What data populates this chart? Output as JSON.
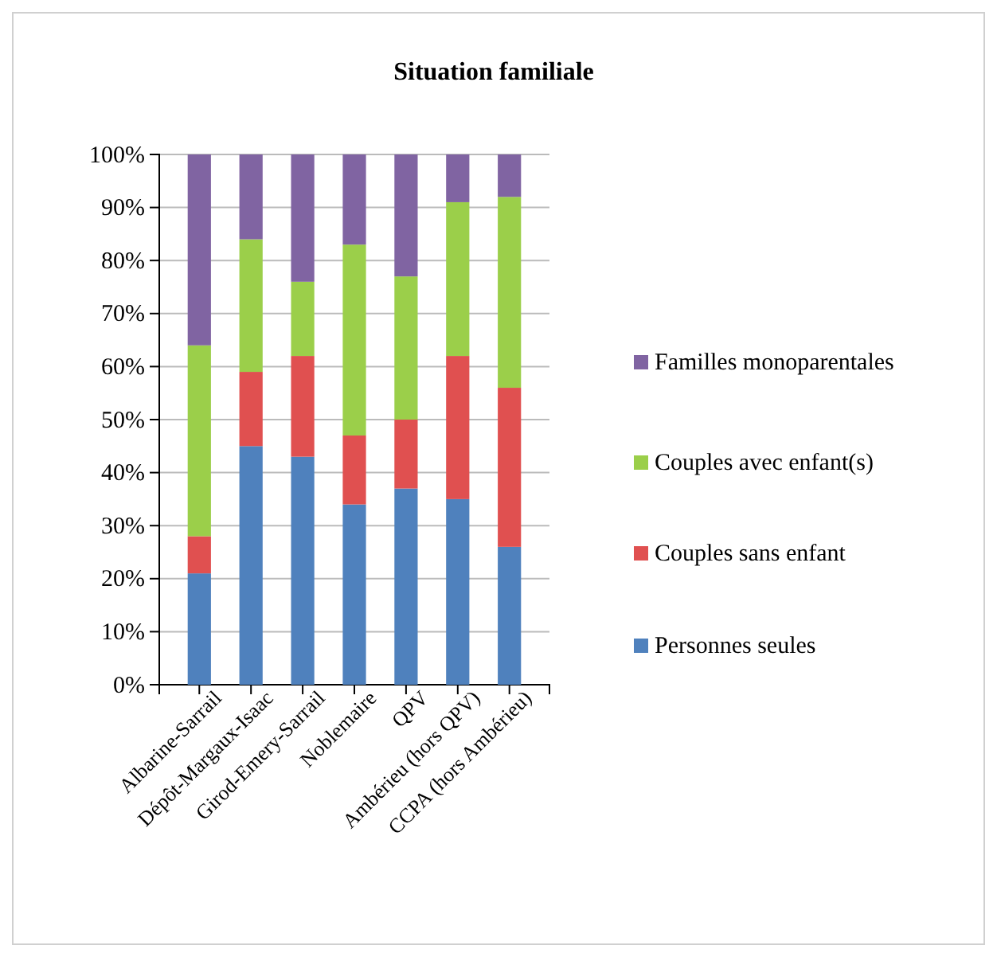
{
  "chart_data": {
    "type": "bar",
    "title": "Situation familiale",
    "stacked": true,
    "categories": [
      "Albarine-Sarrail",
      "Dépôt-Margaux-Isaac",
      "Girod-Emery-Sarrail",
      "Noblemaire",
      "QPV",
      "Ambérieu (hors QPV)",
      "CCPA (hors Ambérieu)"
    ],
    "series": [
      {
        "name": "Personnes seules",
        "color": "#4f81bd",
        "values": [
          21,
          45,
          43,
          34,
          37,
          35,
          26
        ]
      },
      {
        "name": "Couples sans enfant",
        "color": "#e05050",
        "values": [
          7,
          14,
          19,
          13,
          13,
          27,
          30
        ]
      },
      {
        "name": "Couples avec enfant(s)",
        "color": "#9bcf4a",
        "values": [
          36,
          25,
          14,
          36,
          27,
          29,
          36
        ]
      },
      {
        "name": "Familles monoparentales",
        "color": "#8064a2",
        "values": [
          36,
          16,
          24,
          17,
          23,
          9,
          8
        ]
      }
    ],
    "ylim": [
      0,
      100
    ],
    "yticks": [
      {
        "value": 0,
        "label": "0%"
      },
      {
        "value": 10,
        "label": "10%"
      },
      {
        "value": 20,
        "label": "20%"
      },
      {
        "value": 30,
        "label": "30%"
      },
      {
        "value": 40,
        "label": "40%"
      },
      {
        "value": 50,
        "label": "50%"
      },
      {
        "value": 60,
        "label": "60%"
      },
      {
        "value": 70,
        "label": "70%"
      },
      {
        "value": 80,
        "label": "80%"
      },
      {
        "value": 90,
        "label": "90%"
      },
      {
        "value": 100,
        "label": "100%"
      }
    ],
    "grid": "y",
    "legend": "right"
  }
}
